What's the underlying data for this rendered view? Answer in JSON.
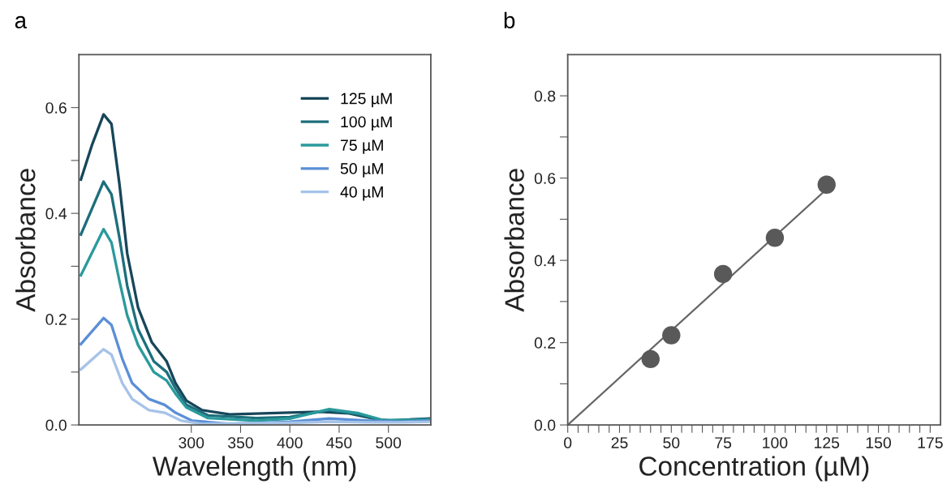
{
  "chart_data": [
    {
      "type": "line",
      "title": "a",
      "xlabel": "Wavelength (nm)",
      "ylabel": "Absorbance",
      "xlim": [
        186,
        543
      ],
      "ylim": [
        0,
        0.7
      ],
      "xticks": [
        300,
        350,
        400,
        450,
        500
      ],
      "yticks": [
        {
          "value": 0,
          "label": "0.0"
        },
        {
          "value": 0.1,
          "label": null
        },
        0.2,
        {
          "value": 0.3,
          "label": null
        },
        0.4,
        {
          "value": 0.5,
          "label": null
        },
        0.6
      ],
      "legend": "top right",
      "grid": false,
      "line_style": "solid",
      "series": [
        {
          "name": "125 µM",
          "color": "#17465a",
          "x": [
            188,
            199,
            211,
            219,
            227,
            235,
            246,
            260,
            275,
            284,
            295,
            311,
            339,
            393,
            430,
            460,
            490,
            505,
            520,
            543
          ],
          "values": [
            0.464,
            0.528,
            0.587,
            0.569,
            0.457,
            0.324,
            0.222,
            0.156,
            0.12,
            0.079,
            0.046,
            0.028,
            0.02,
            0.023,
            0.025,
            0.022,
            0.01,
            0.008,
            0.01,
            0.012
          ]
        },
        {
          "name": "100 µM",
          "color": "#1d6f7c",
          "x": [
            188,
            211,
            219,
            227,
            235,
            246,
            262,
            275,
            284,
            295,
            317,
            366,
            400,
            440,
            470,
            495,
            520,
            543
          ],
          "values": [
            0.36,
            0.46,
            0.436,
            0.355,
            0.263,
            0.181,
            0.12,
            0.1,
            0.069,
            0.038,
            0.018,
            0.013,
            0.015,
            0.028,
            0.02,
            0.008,
            0.01,
            0.011
          ]
        },
        {
          "name": "75 µM",
          "color": "#2a9a9c",
          "x": [
            188,
            211,
            219,
            227,
            235,
            246,
            262,
            275,
            284,
            295,
            317,
            366,
            400,
            440,
            470,
            495,
            520,
            543
          ],
          "values": [
            0.283,
            0.37,
            0.345,
            0.273,
            0.207,
            0.151,
            0.1,
            0.084,
            0.059,
            0.033,
            0.013,
            0.008,
            0.012,
            0.03,
            0.022,
            0.009,
            0.009,
            0.01
          ]
        },
        {
          "name": "50 µM",
          "color": "#5b8fd6",
          "x": [
            188,
            211,
            219,
            230,
            240,
            257,
            273,
            284,
            301,
            339,
            400,
            440,
            480,
            510,
            543
          ],
          "values": [
            0.153,
            0.202,
            0.189,
            0.125,
            0.079,
            0.049,
            0.038,
            0.023,
            0.008,
            0.002,
            0.006,
            0.012,
            0.008,
            0.006,
            0.008
          ]
        },
        {
          "name": "40 µM",
          "color": "#a6c3e8",
          "x": [
            188,
            211,
            219,
            230,
            240,
            257,
            273,
            290,
            311,
            400,
            440,
            480,
            510,
            543
          ],
          "values": [
            0.105,
            0.143,
            0.133,
            0.079,
            0.049,
            0.028,
            0.023,
            0.008,
            0.002,
            0.004,
            0.006,
            0.005,
            0.005,
            0.006
          ]
        }
      ]
    },
    {
      "type": "scatter",
      "title": "b",
      "xlabel": "Concentration (µM)",
      "ylabel": "Absorbance",
      "xlim": [
        0,
        180
      ],
      "ylim": [
        0,
        0.9
      ],
      "xticks": [
        0,
        {
          "value": 5,
          "label": null
        },
        {
          "value": 10,
          "label": null
        },
        {
          "value": 15,
          "label": null
        },
        {
          "value": 20,
          "label": null
        },
        25,
        {
          "value": 30,
          "label": null
        },
        {
          "value": 35,
          "label": null
        },
        {
          "value": 40,
          "label": null
        },
        {
          "value": 45,
          "label": null
        },
        50,
        {
          "value": 55,
          "label": null
        },
        {
          "value": 60,
          "label": null
        },
        {
          "value": 65,
          "label": null
        },
        {
          "value": 70,
          "label": null
        },
        75,
        {
          "value": 80,
          "label": null
        },
        {
          "value": 85,
          "label": null
        },
        {
          "value": 90,
          "label": null
        },
        {
          "value": 95,
          "label": null
        },
        100,
        {
          "value": 105,
          "label": null
        },
        {
          "value": 110,
          "label": null
        },
        {
          "value": 115,
          "label": null
        },
        {
          "value": 120,
          "label": null
        },
        125,
        {
          "value": 130,
          "label": null
        },
        {
          "value": 135,
          "label": null
        },
        {
          "value": 140,
          "label": null
        },
        {
          "value": 145,
          "label": null
        },
        150,
        {
          "value": 155,
          "label": null
        },
        {
          "value": 160,
          "label": null
        },
        {
          "value": 165,
          "label": null
        },
        {
          "value": 170,
          "label": null
        },
        175
      ],
      "yticks": [
        {
          "value": 0,
          "label": "0.0"
        },
        {
          "value": 0.1,
          "label": null
        },
        0.2,
        {
          "value": 0.3,
          "label": null
        },
        0.4,
        {
          "value": 0.5,
          "label": null
        },
        0.6,
        {
          "value": 0.7,
          "label": null
        },
        0.8
      ],
      "grid": false,
      "series": [
        {
          "type": "scatter",
          "marker": "circle",
          "color": "#595959",
          "x": [
            40,
            50,
            75,
            100,
            125
          ],
          "values": [
            0.16,
            0.218,
            0.367,
            0.455,
            0.584
          ]
        },
        {
          "type": "line",
          "marker": "none",
          "color": "#666666",
          "x": [
            0,
            125
          ],
          "values": [
            0,
            0.573
          ]
        }
      ]
    }
  ]
}
